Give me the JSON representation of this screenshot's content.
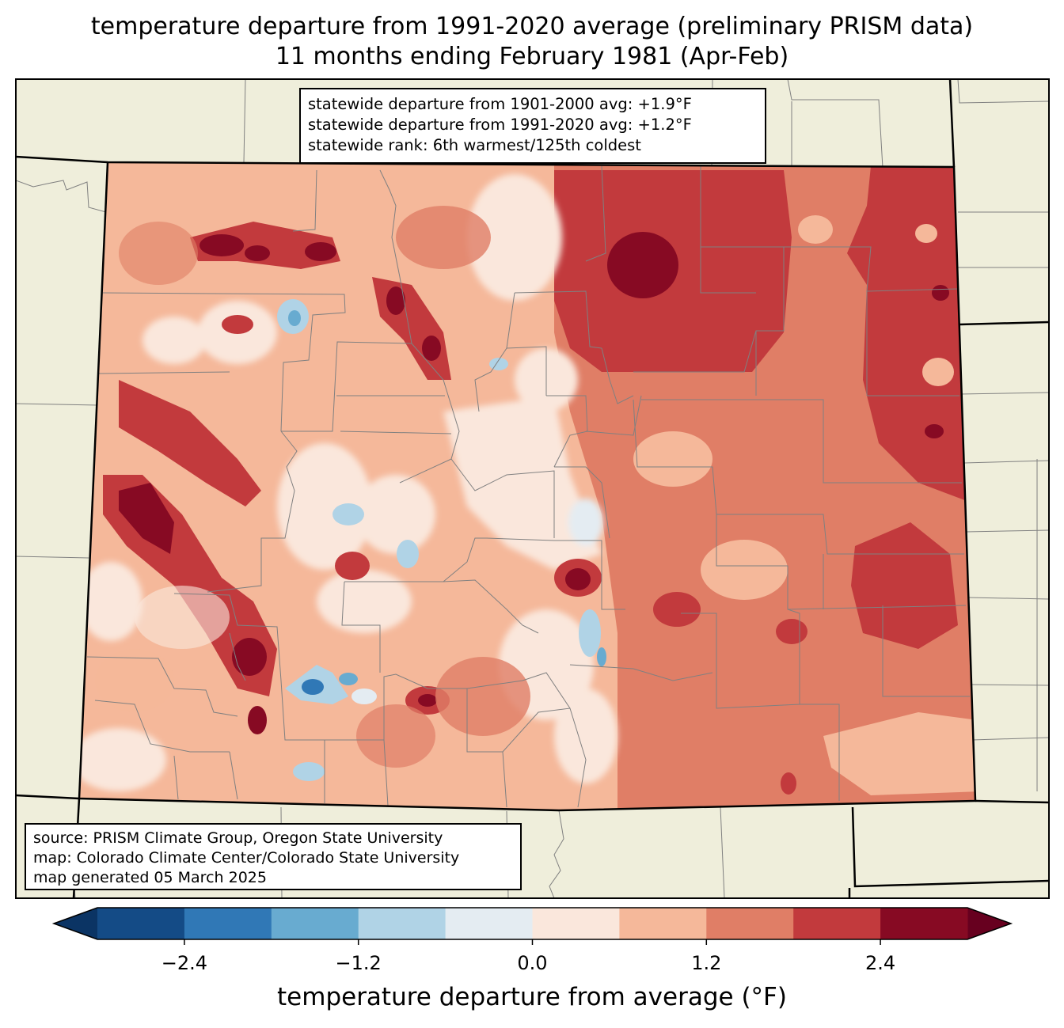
{
  "title": {
    "line1": "temperature departure from 1991-2020 average (preliminary PRISM data)",
    "line2": "11 months ending February 1981 (Apr-Feb)"
  },
  "stats": {
    "line1": "statewide departure from 1901-2000 avg: +1.9°F",
    "line2": "statewide departure from 1991-2020 avg: +1.2°F",
    "line3": "statewide rank: 6th warmest/125th coldest"
  },
  "credits": {
    "line1": "source: PRISM Climate Group, Oregon State University",
    "line2": "map: Colorado Climate Center/Colorado State University",
    "line3": "map generated 05 March 2025"
  },
  "colorbar": {
    "label": "temperature departure from average (°F)",
    "ticks": [
      "−2.4",
      "−1.2",
      "0.0",
      "1.2",
      "2.4"
    ],
    "tick_values": [
      -2.4,
      -1.2,
      0.0,
      1.2,
      2.4
    ],
    "range": [
      -3.0,
      3.0
    ],
    "extend": "both",
    "bin_edges": [
      -3.0,
      -2.4,
      -1.8,
      -1.2,
      -0.6,
      0.0,
      0.6,
      1.2,
      1.8,
      2.4,
      3.0
    ],
    "colors": [
      "#144b86",
      "#3078b6",
      "#68abd0",
      "#b0d3e6",
      "#e4ecf2",
      "#fae7dc",
      "#f5b89a",
      "#e07e66",
      "#c23a3d",
      "#870a23"
    ],
    "under_color": "#0b3464",
    "over_color": "#67001f"
  },
  "map_colors": {
    "land": "#efeedb",
    "state_border": "#000000",
    "county_border": "#808080"
  }
}
